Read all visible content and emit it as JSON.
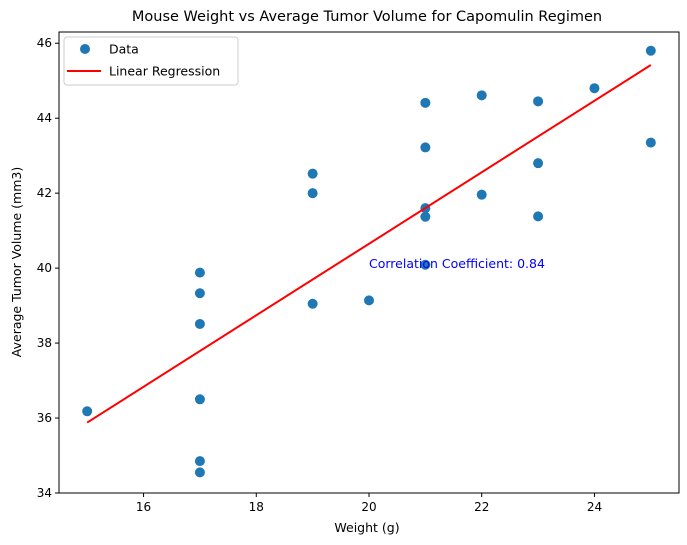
{
  "chart_data": {
    "type": "scatter",
    "title": "Mouse Weight vs Average Tumor Volume for Capomulin Regimen",
    "xlabel": "Weight (g)",
    "ylabel": "Average Tumor Volume (mm3)",
    "xlim": [
      14.5,
      25.5
    ],
    "ylim": [
      34,
      46.3
    ],
    "xticks": [
      16,
      18,
      20,
      22,
      24
    ],
    "yticks": [
      34,
      36,
      38,
      40,
      42,
      44,
      46
    ],
    "grid": false,
    "legend_position": "top-left",
    "series": [
      {
        "name": "Data",
        "type": "scatter",
        "color": "#1f77b4",
        "points": [
          {
            "x": 15,
            "y": 36.18
          },
          {
            "x": 17,
            "y": 34.55
          },
          {
            "x": 17,
            "y": 34.85
          },
          {
            "x": 17,
            "y": 36.5
          },
          {
            "x": 17,
            "y": 38.51
          },
          {
            "x": 17,
            "y": 39.33
          },
          {
            "x": 17,
            "y": 39.88
          },
          {
            "x": 19,
            "y": 39.05
          },
          {
            "x": 19,
            "y": 42.0
          },
          {
            "x": 19,
            "y": 42.52
          },
          {
            "x": 20,
            "y": 39.14
          },
          {
            "x": 21,
            "y": 40.09
          },
          {
            "x": 21,
            "y": 41.37
          },
          {
            "x": 21,
            "y": 41.6
          },
          {
            "x": 21,
            "y": 43.22
          },
          {
            "x": 21,
            "y": 44.41
          },
          {
            "x": 22,
            "y": 41.96
          },
          {
            "x": 22,
            "y": 44.61
          },
          {
            "x": 23,
            "y": 41.38
          },
          {
            "x": 23,
            "y": 42.8
          },
          {
            "x": 23,
            "y": 44.45
          },
          {
            "x": 24,
            "y": 44.8
          },
          {
            "x": 25,
            "y": 43.35
          },
          {
            "x": 25,
            "y": 45.8
          }
        ]
      },
      {
        "name": "Linear Regression",
        "type": "line",
        "color": "#ff0000",
        "points": [
          {
            "x": 15,
            "y": 35.88
          },
          {
            "x": 25,
            "y": 45.42
          }
        ]
      }
    ],
    "annotations": [
      {
        "text": "Correlation Coefficient: 0.84",
        "x": 20,
        "y": 40,
        "color": "#0000ff"
      }
    ]
  }
}
